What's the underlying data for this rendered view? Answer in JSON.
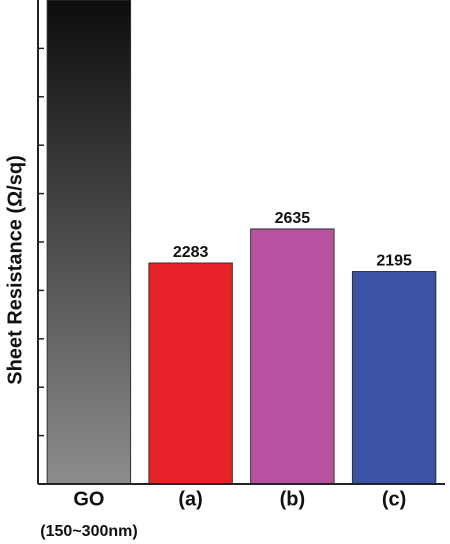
{
  "chart_data": {
    "type": "bar",
    "ylabel": "Sheet Resistance  (Ω/sq)",
    "categories": [
      "GO",
      "(a)",
      "(b)",
      "(c)"
    ],
    "annotation": "(150~300nm)",
    "values": [
      5000,
      2283,
      2635,
      2195
    ],
    "show_value_label": [
      false,
      true,
      true,
      true
    ],
    "colors": [
      [
        "#0d0d0d",
        "#8c8c8c"
      ],
      "#e82229",
      "#b6529f",
      "#3b53a5"
    ],
    "ylim": [
      0,
      5000
    ],
    "yticks": [
      500,
      1000,
      1500,
      2000,
      2500,
      3000,
      3500,
      4000,
      4500
    ]
  }
}
